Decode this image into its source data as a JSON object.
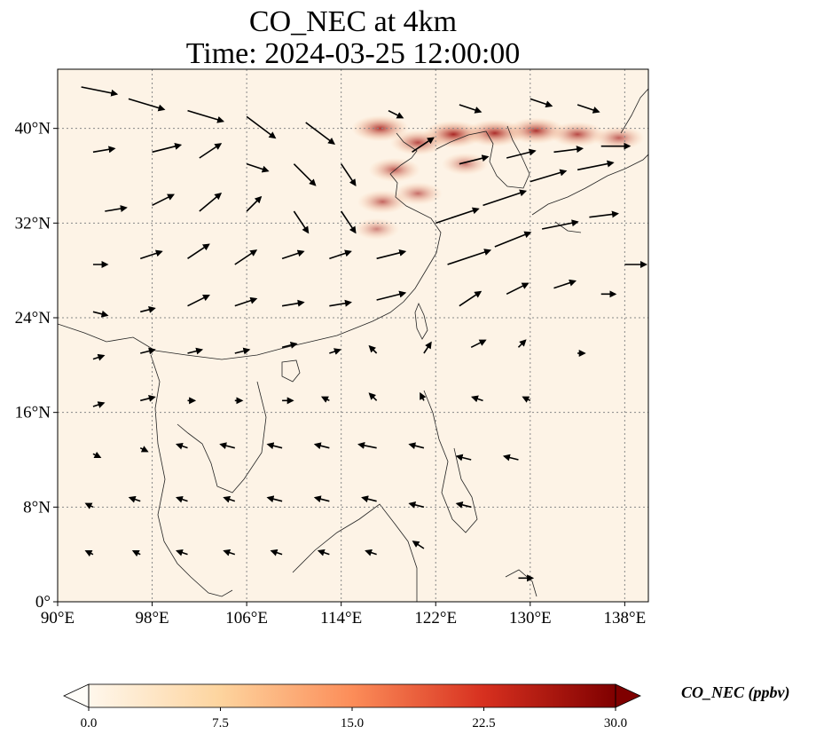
{
  "title": {
    "line1": "CO_NEC at 4km",
    "line2": "Time: 2024-03-25 12:00:00"
  },
  "map": {
    "extent": {
      "lon": [
        90,
        140
      ],
      "lat": [
        0,
        45
      ]
    },
    "lon_ticks": [
      {
        "value": 90,
        "label": "90°E"
      },
      {
        "value": 98,
        "label": "98°E"
      },
      {
        "value": 106,
        "label": "106°E"
      },
      {
        "value": 114,
        "label": "114°E"
      },
      {
        "value": 122,
        "label": "122°E"
      },
      {
        "value": 130,
        "label": "130°E"
      },
      {
        "value": 138,
        "label": "138°E"
      }
    ],
    "lat_ticks": [
      {
        "value": 0,
        "label": "0°"
      },
      {
        "value": 8,
        "label": "8°N"
      },
      {
        "value": 16,
        "label": "16°N"
      },
      {
        "value": 24,
        "label": "24°N"
      },
      {
        "value": 32,
        "label": "32°N"
      },
      {
        "value": 40,
        "label": "40°N"
      }
    ],
    "gridlines": true,
    "colors": {
      "background": "#fdf3e6",
      "grid": "#888888",
      "coast": "#222222",
      "arrow": "#000000"
    }
  },
  "colorbar": {
    "label": "CO_NEC (ppbv)",
    "min": 0.0,
    "max": 30.0,
    "extend": "both",
    "colormap": "OrRd",
    "ticks": [
      {
        "value": 0.0,
        "label": "0.0"
      },
      {
        "value": 7.5,
        "label": "7.5"
      },
      {
        "value": 15.0,
        "label": "15.0"
      },
      {
        "value": 22.5,
        "label": "22.5"
      },
      {
        "value": 30.0,
        "label": "30.0"
      }
    ]
  },
  "plumes": [
    {
      "lon": 123.5,
      "lat": 39.5,
      "value": 27
    },
    {
      "lon": 127.0,
      "lat": 39.6,
      "value": 26
    },
    {
      "lon": 130.5,
      "lat": 39.8,
      "value": 24
    },
    {
      "lon": 134.0,
      "lat": 39.5,
      "value": 20
    },
    {
      "lon": 137.5,
      "lat": 39.2,
      "value": 15
    },
    {
      "lon": 117.3,
      "lat": 40.0,
      "value": 23
    },
    {
      "lon": 120.5,
      "lat": 38.8,
      "value": 20
    },
    {
      "lon": 118.5,
      "lat": 36.5,
      "value": 16
    },
    {
      "lon": 117.5,
      "lat": 33.8,
      "value": 14
    },
    {
      "lon": 120.5,
      "lat": 34.5,
      "value": 12
    },
    {
      "lon": 117.0,
      "lat": 31.5,
      "value": 8
    },
    {
      "lon": 124.5,
      "lat": 37.0,
      "value": 10
    }
  ],
  "winds": [
    {
      "lon": 92,
      "lat": 43.5,
      "u": 5,
      "v": -1
    },
    {
      "lon": 96,
      "lat": 42.5,
      "u": 5,
      "v": -1.5
    },
    {
      "lon": 101,
      "lat": 41.5,
      "u": 5,
      "v": -1.5
    },
    {
      "lon": 106,
      "lat": 41,
      "u": 4,
      "v": -3
    },
    {
      "lon": 111,
      "lat": 40.5,
      "u": 4,
      "v": -3
    },
    {
      "lon": 93,
      "lat": 38,
      "u": 3,
      "v": 0.5
    },
    {
      "lon": 98,
      "lat": 38,
      "u": 4,
      "v": 1
    },
    {
      "lon": 102,
      "lat": 37.5,
      "u": 3,
      "v": 2
    },
    {
      "lon": 106,
      "lat": 37,
      "u": 3,
      "v": -1
    },
    {
      "lon": 110,
      "lat": 37,
      "u": 3,
      "v": -3
    },
    {
      "lon": 114,
      "lat": 37,
      "u": 2,
      "v": -3
    },
    {
      "lon": 94,
      "lat": 33,
      "u": 3,
      "v": 0.5
    },
    {
      "lon": 98,
      "lat": 33.5,
      "u": 3,
      "v": 1.5
    },
    {
      "lon": 102,
      "lat": 33,
      "u": 3,
      "v": 2.5
    },
    {
      "lon": 106,
      "lat": 33,
      "u": 2,
      "v": 2
    },
    {
      "lon": 110,
      "lat": 33,
      "u": 2,
      "v": -3
    },
    {
      "lon": 114,
      "lat": 33,
      "u": 2,
      "v": -3
    },
    {
      "lon": 93,
      "lat": 28.5,
      "u": 2,
      "v": 0
    },
    {
      "lon": 97,
      "lat": 29,
      "u": 3,
      "v": 1
    },
    {
      "lon": 101,
      "lat": 29,
      "u": 3,
      "v": 2
    },
    {
      "lon": 105,
      "lat": 28.5,
      "u": 3,
      "v": 2
    },
    {
      "lon": 109,
      "lat": 29,
      "u": 3,
      "v": 1
    },
    {
      "lon": 113,
      "lat": 29,
      "u": 3,
      "v": 1
    },
    {
      "lon": 117,
      "lat": 29,
      "u": 4,
      "v": 1
    },
    {
      "lon": 93,
      "lat": 24.5,
      "u": 2,
      "v": -0.5
    },
    {
      "lon": 97,
      "lat": 24.5,
      "u": 2,
      "v": 0.5
    },
    {
      "lon": 101,
      "lat": 25,
      "u": 3,
      "v": 1.5
    },
    {
      "lon": 105,
      "lat": 25,
      "u": 3,
      "v": 1
    },
    {
      "lon": 109,
      "lat": 25,
      "u": 3,
      "v": 0.5
    },
    {
      "lon": 113,
      "lat": 25,
      "u": 3,
      "v": 0.5
    },
    {
      "lon": 117,
      "lat": 25.5,
      "u": 4,
      "v": 1
    },
    {
      "lon": 122,
      "lat": 32,
      "u": 6,
      "v": 2
    },
    {
      "lon": 126,
      "lat": 33.5,
      "u": 6,
      "v": 2
    },
    {
      "lon": 130,
      "lat": 35.5,
      "u": 5,
      "v": 1.5
    },
    {
      "lon": 134,
      "lat": 36.5,
      "u": 5,
      "v": 1
    },
    {
      "lon": 123,
      "lat": 28.5,
      "u": 6,
      "v": 2
    },
    {
      "lon": 127,
      "lat": 30,
      "u": 5,
      "v": 2
    },
    {
      "lon": 131,
      "lat": 31.5,
      "u": 5,
      "v": 1
    },
    {
      "lon": 135,
      "lat": 32.5,
      "u": 4,
      "v": 0.5
    },
    {
      "lon": 138,
      "lat": 28.5,
      "u": 3,
      "v": 0
    },
    {
      "lon": 124,
      "lat": 25,
      "u": 3,
      "v": 2
    },
    {
      "lon": 128,
      "lat": 26,
      "u": 3,
      "v": 1.5
    },
    {
      "lon": 132,
      "lat": 26.5,
      "u": 3,
      "v": 1
    },
    {
      "lon": 136,
      "lat": 26,
      "u": 2,
      "v": 0
    },
    {
      "lon": 120,
      "lat": 38,
      "u": 3,
      "v": 2
    },
    {
      "lon": 124,
      "lat": 37,
      "u": 4,
      "v": 1
    },
    {
      "lon": 128,
      "lat": 37.5,
      "u": 4,
      "v": 1
    },
    {
      "lon": 132,
      "lat": 38,
      "u": 4,
      "v": 0.5
    },
    {
      "lon": 136,
      "lat": 38.5,
      "u": 4,
      "v": 0
    },
    {
      "lon": 118,
      "lat": 41.5,
      "u": 2,
      "v": -1
    },
    {
      "lon": 124,
      "lat": 42,
      "u": 3,
      "v": -1
    },
    {
      "lon": 130,
      "lat": 42.5,
      "u": 3,
      "v": -1
    },
    {
      "lon": 134,
      "lat": 42,
      "u": 3,
      "v": -1
    },
    {
      "lon": 93,
      "lat": 20.5,
      "u": 1.5,
      "v": 0.5
    },
    {
      "lon": 97,
      "lat": 21,
      "u": 2,
      "v": 0.5
    },
    {
      "lon": 101,
      "lat": 21,
      "u": 2,
      "v": 0.5
    },
    {
      "lon": 105,
      "lat": 21,
      "u": 2,
      "v": 0.5
    },
    {
      "lon": 109,
      "lat": 21.5,
      "u": 2,
      "v": 0.5
    },
    {
      "lon": 113,
      "lat": 21,
      "u": 1.5,
      "v": 0.5
    },
    {
      "lon": 117,
      "lat": 21,
      "u": -1,
      "v": 1
    },
    {
      "lon": 121,
      "lat": 21,
      "u": 1,
      "v": 1.5
    },
    {
      "lon": 125,
      "lat": 21.5,
      "u": 2,
      "v": 1
    },
    {
      "lon": 129,
      "lat": 21.5,
      "u": 1,
      "v": 1
    },
    {
      "lon": 134,
      "lat": 21,
      "u": 1,
      "v": 0
    },
    {
      "lon": 93,
      "lat": 16.5,
      "u": 1.5,
      "v": 0.5
    },
    {
      "lon": 97,
      "lat": 17,
      "u": 2,
      "v": 0.5
    },
    {
      "lon": 101,
      "lat": 17,
      "u": 1,
      "v": 0
    },
    {
      "lon": 105,
      "lat": 17,
      "u": 1,
      "v": 0
    },
    {
      "lon": 109,
      "lat": 17,
      "u": 1.5,
      "v": 0
    },
    {
      "lon": 113,
      "lat": 17,
      "u": -1,
      "v": 0.5
    },
    {
      "lon": 117,
      "lat": 17,
      "u": -1,
      "v": 1
    },
    {
      "lon": 121,
      "lat": 17,
      "u": -0.5,
      "v": 1
    },
    {
      "lon": 126,
      "lat": 17,
      "u": -1.5,
      "v": 0.5
    },
    {
      "lon": 130,
      "lat": 17,
      "u": -1,
      "v": 0.5
    },
    {
      "lon": 93,
      "lat": 12.5,
      "u": 1,
      "v": -0.5
    },
    {
      "lon": 97,
      "lat": 13,
      "u": 1,
      "v": -0.5
    },
    {
      "lon": 101,
      "lat": 13,
      "u": -1.5,
      "v": 0.5
    },
    {
      "lon": 105,
      "lat": 13,
      "u": -2,
      "v": 0.5
    },
    {
      "lon": 109,
      "lat": 13,
      "u": -2,
      "v": 0.5
    },
    {
      "lon": 113,
      "lat": 13,
      "u": -2,
      "v": 0.5
    },
    {
      "lon": 117,
      "lat": 13,
      "u": -2.5,
      "v": 0.5
    },
    {
      "lon": 121,
      "lat": 13,
      "u": -2,
      "v": 0.5
    },
    {
      "lon": 125,
      "lat": 12,
      "u": -2,
      "v": 0.5
    },
    {
      "lon": 129,
      "lat": 12,
      "u": -2,
      "v": 0.5
    },
    {
      "lon": 93,
      "lat": 8,
      "u": -1,
      "v": 0.5
    },
    {
      "lon": 97,
      "lat": 8.5,
      "u": -1.5,
      "v": 0.5
    },
    {
      "lon": 101,
      "lat": 8.5,
      "u": -1.5,
      "v": 0.5
    },
    {
      "lon": 105,
      "lat": 8.5,
      "u": -1.5,
      "v": 0.5
    },
    {
      "lon": 109,
      "lat": 8.5,
      "u": -2,
      "v": 0.5
    },
    {
      "lon": 113,
      "lat": 8.5,
      "u": -2,
      "v": 0.5
    },
    {
      "lon": 117,
      "lat": 8.5,
      "u": -2,
      "v": 0.5
    },
    {
      "lon": 121,
      "lat": 8,
      "u": -2,
      "v": 0.5
    },
    {
      "lon": 125,
      "lat": 8,
      "u": -2,
      "v": 0.5
    },
    {
      "lon": 93,
      "lat": 4,
      "u": -1,
      "v": 0.5
    },
    {
      "lon": 97,
      "lat": 4,
      "u": -1,
      "v": 0.5
    },
    {
      "lon": 101,
      "lat": 4,
      "u": -1.5,
      "v": 0.5
    },
    {
      "lon": 105,
      "lat": 4,
      "u": -1.5,
      "v": 0.5
    },
    {
      "lon": 109,
      "lat": 4,
      "u": -1.5,
      "v": 0.5
    },
    {
      "lon": 113,
      "lat": 4,
      "u": -1.5,
      "v": 0.5
    },
    {
      "lon": 117,
      "lat": 4,
      "u": -1.5,
      "v": 0.5
    },
    {
      "lon": 121,
      "lat": 4.5,
      "u": -1.5,
      "v": 1
    },
    {
      "lon": 129,
      "lat": 2,
      "u": 2,
      "v": 0
    }
  ]
}
